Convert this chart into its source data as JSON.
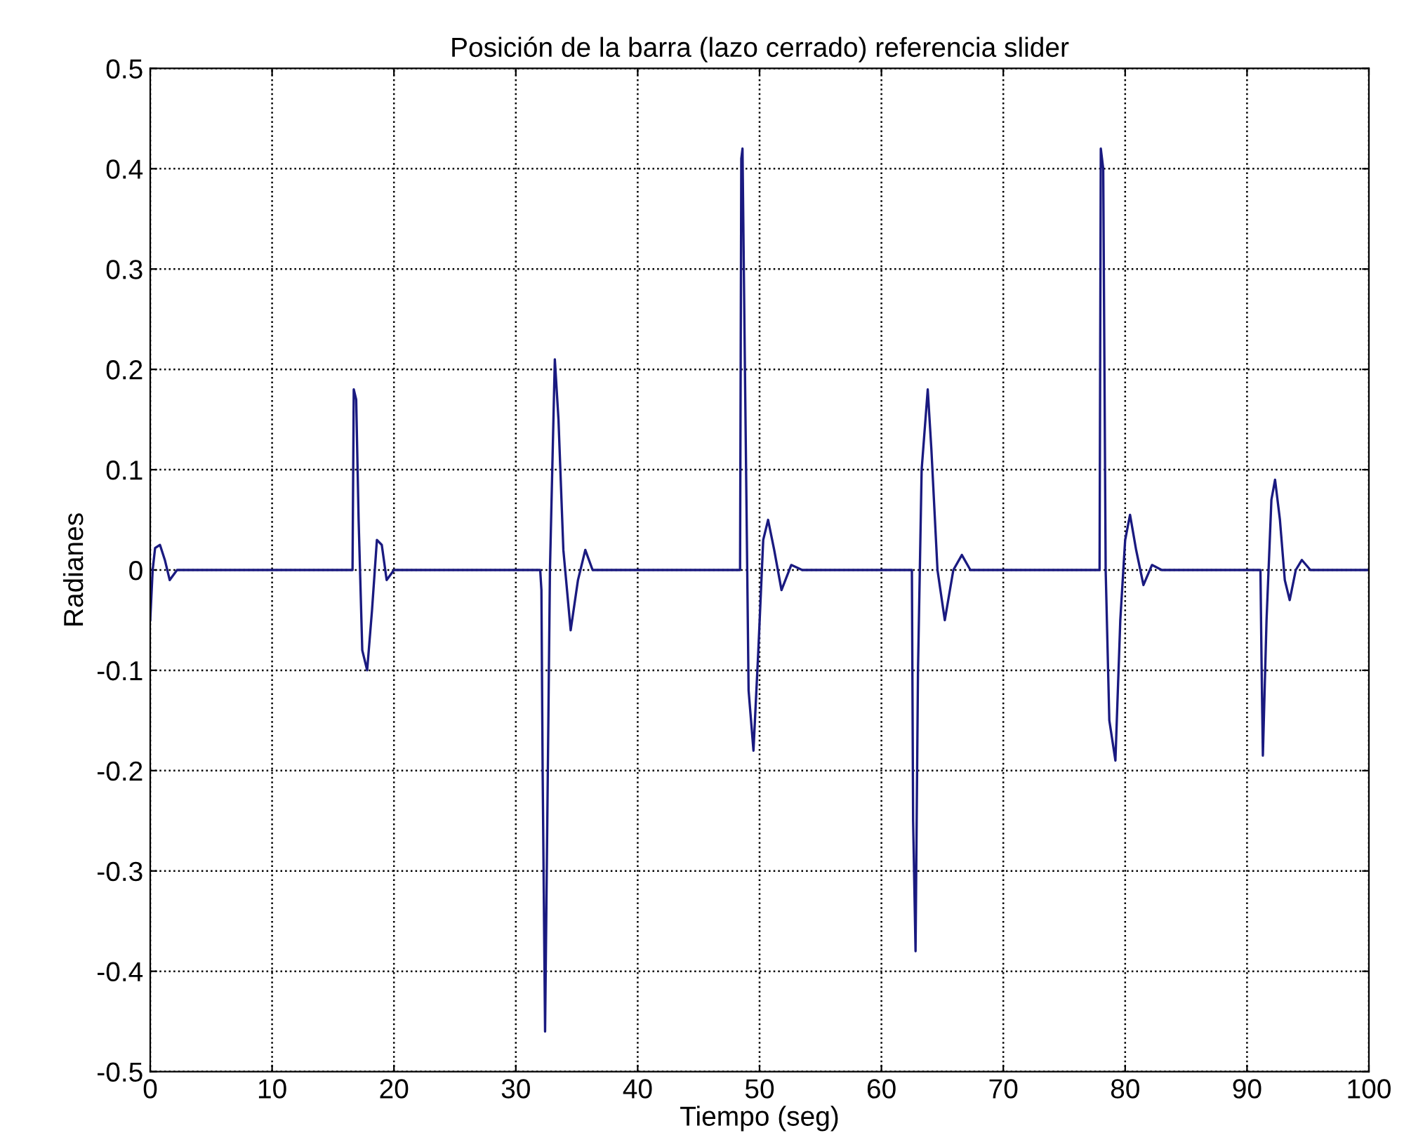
{
  "chart_data": {
    "type": "line",
    "title": "Posición de la barra (lazo cerrado) referencia slider",
    "xlabel": "Tiempo (seg)",
    "ylabel": "Radianes",
    "xlim": [
      0,
      100
    ],
    "xticks": [
      0,
      10,
      20,
      30,
      40,
      50,
      60,
      70,
      80,
      90,
      100
    ],
    "ylim": [
      -0.5,
      0.5
    ],
    "yticks": [
      -0.5,
      -0.4,
      -0.3,
      -0.2,
      -0.1,
      0,
      0.1,
      0.2,
      0.3,
      0.4,
      0.5
    ],
    "grid": true,
    "line_style": "solid",
    "marker": "none",
    "series": [
      {
        "color": "#1a1a80",
        "x": [
          0,
          0.2,
          0.4,
          0.8,
          1.2,
          1.6,
          2.2,
          3,
          16.6,
          16.7,
          16.9,
          17.1,
          17.4,
          17.8,
          18.2,
          18.6,
          19.0,
          19.4,
          20,
          32.0,
          32.1,
          32.2,
          32.4,
          32.8,
          33.2,
          33.5,
          33.9,
          34.5,
          35.1,
          35.7,
          36.3,
          37,
          48.4,
          48.5,
          48.6,
          48.8,
          49.1,
          49.5,
          49.9,
          50.3,
          50.7,
          51.2,
          51.8,
          52.6,
          53.5,
          62.5,
          62.6,
          62.8,
          63.0,
          63.3,
          63.8,
          64.1,
          64.6,
          65.2,
          65.9,
          66.6,
          67.3,
          68,
          77.9,
          78.0,
          78.2,
          78.4,
          78.7,
          79.2,
          79.6,
          80.0,
          80.4,
          80.9,
          81.5,
          82.2,
          83,
          91.1,
          91.2,
          91.3,
          91.6,
          92.0,
          92.3,
          92.7,
          93.1,
          93.5,
          94.0,
          94.5,
          95.2,
          96,
          100
        ],
        "values": [
          -0.05,
          0.0,
          0.022,
          0.025,
          0.01,
          -0.01,
          0.0,
          0.0,
          0.0,
          0.18,
          0.17,
          0.05,
          -0.08,
          -0.1,
          -0.04,
          0.03,
          0.025,
          -0.01,
          0.0,
          0.0,
          -0.02,
          -0.2,
          -0.46,
          0.0,
          0.21,
          0.15,
          0.02,
          -0.06,
          -0.01,
          0.02,
          0.0,
          0.0,
          0.0,
          0.41,
          0.42,
          0.2,
          -0.12,
          -0.18,
          -0.08,
          0.03,
          0.05,
          0.02,
          -0.02,
          0.005,
          0.0,
          0.0,
          -0.25,
          -0.38,
          -0.1,
          0.1,
          0.18,
          0.12,
          0.0,
          -0.05,
          0.0,
          0.015,
          0.0,
          0.0,
          0.0,
          0.42,
          0.4,
          0.0,
          -0.15,
          -0.19,
          -0.05,
          0.03,
          0.055,
          0.02,
          -0.015,
          0.005,
          0.0,
          0.0,
          -0.1,
          -0.185,
          -0.05,
          0.07,
          0.09,
          0.05,
          -0.01,
          -0.03,
          0.0,
          0.01,
          0.0,
          0.0,
          0.0
        ]
      }
    ]
  }
}
